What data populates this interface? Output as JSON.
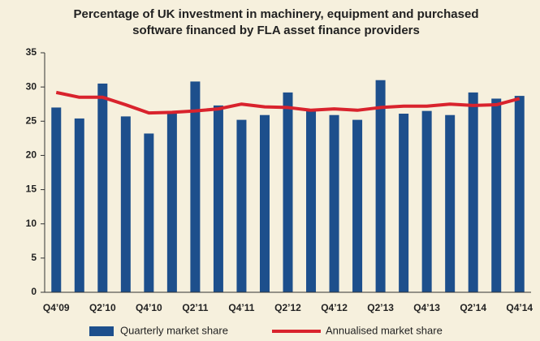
{
  "chart_data": {
    "type": "bar",
    "title": "Percentage of UK investment in machinery, equipment and purchased software financed by FLA asset finance providers",
    "categories": [
      "Q4’09",
      null,
      "Q2’10",
      null,
      "Q4’10",
      null,
      "Q2’11",
      null,
      "Q4’11",
      null,
      "Q2’12",
      null,
      "Q4’12",
      null,
      "Q2’13",
      null,
      "Q4’13",
      null,
      "Q2’14",
      null,
      "Q4’14"
    ],
    "series": [
      {
        "name": "Quarterly market share",
        "type": "bar",
        "color": "#1d4f8c",
        "values": [
          27,
          25.4,
          30.5,
          25.7,
          23.2,
          26.3,
          30.8,
          27.3,
          25.2,
          25.9,
          29.2,
          26.6,
          25.9,
          25.2,
          31,
          26.1,
          26.5,
          25.9,
          29.2,
          28.3,
          28.7
        ]
      },
      {
        "name": "Annualised market share",
        "type": "line",
        "color": "#d9232d",
        "values": [
          29.2,
          28.5,
          28.5,
          27.4,
          26.2,
          26.3,
          26.5,
          26.8,
          27.5,
          27.1,
          27.0,
          26.6,
          26.8,
          26.6,
          27.0,
          27.2,
          27.2,
          27.5,
          27.3,
          27.4,
          28.3
        ]
      }
    ],
    "ylim": [
      0,
      35
    ],
    "yticks": [
      0,
      5,
      10,
      15,
      20,
      25,
      30,
      35
    ],
    "grid": false
  }
}
